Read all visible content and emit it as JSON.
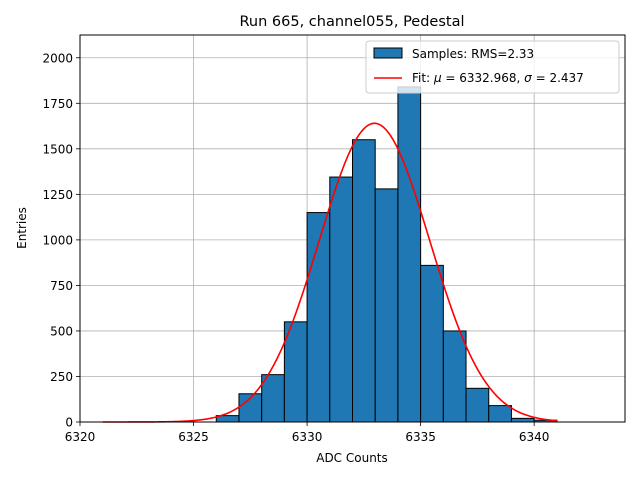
{
  "chart_data": {
    "type": "bar",
    "title": "Run 665, channel055, Pedestal",
    "xlabel": "ADC Counts",
    "ylabel": "Entries",
    "xlim": [
      6320,
      6344
    ],
    "ylim": [
      0,
      2125
    ],
    "xticks": [
      6320,
      6325,
      6330,
      6335,
      6340
    ],
    "yticks": [
      0,
      250,
      500,
      750,
      1000,
      1250,
      1500,
      1750,
      2000
    ],
    "grid": true,
    "legend_position": "top-right",
    "bin_width": 1,
    "bins": [
      {
        "x": 6326,
        "count": 35
      },
      {
        "x": 6327,
        "count": 155
      },
      {
        "x": 6328,
        "count": 260
      },
      {
        "x": 6329,
        "count": 550
      },
      {
        "x": 6330,
        "count": 1150
      },
      {
        "x": 6331,
        "count": 1345
      },
      {
        "x": 6332,
        "count": 1550
      },
      {
        "x": 6333,
        "count": 1280
      },
      {
        "x": 6334,
        "count": 1840
      },
      {
        "x": 6335,
        "count": 860
      },
      {
        "x": 6336,
        "count": 500
      },
      {
        "x": 6337,
        "count": 185
      },
      {
        "x": 6338,
        "count": 90
      },
      {
        "x": 6339,
        "count": 20
      },
      {
        "x": 6340,
        "count": 10
      }
    ],
    "fit": {
      "mu": 6332.968,
      "sigma": 2.437,
      "amplitude": 1640,
      "x_range": [
        6321,
        6341
      ]
    },
    "series": [
      {
        "name": "Samples: RMS=2.33",
        "kind": "histogram",
        "color": "#1f77b4"
      },
      {
        "name_prefix": "Fit: ",
        "name_mu": "μ",
        "name_mid": " = 6332.968, ",
        "name_sigma": "σ",
        "name_suffix": " = 2.437",
        "kind": "line",
        "color": "#ff0000"
      }
    ]
  }
}
